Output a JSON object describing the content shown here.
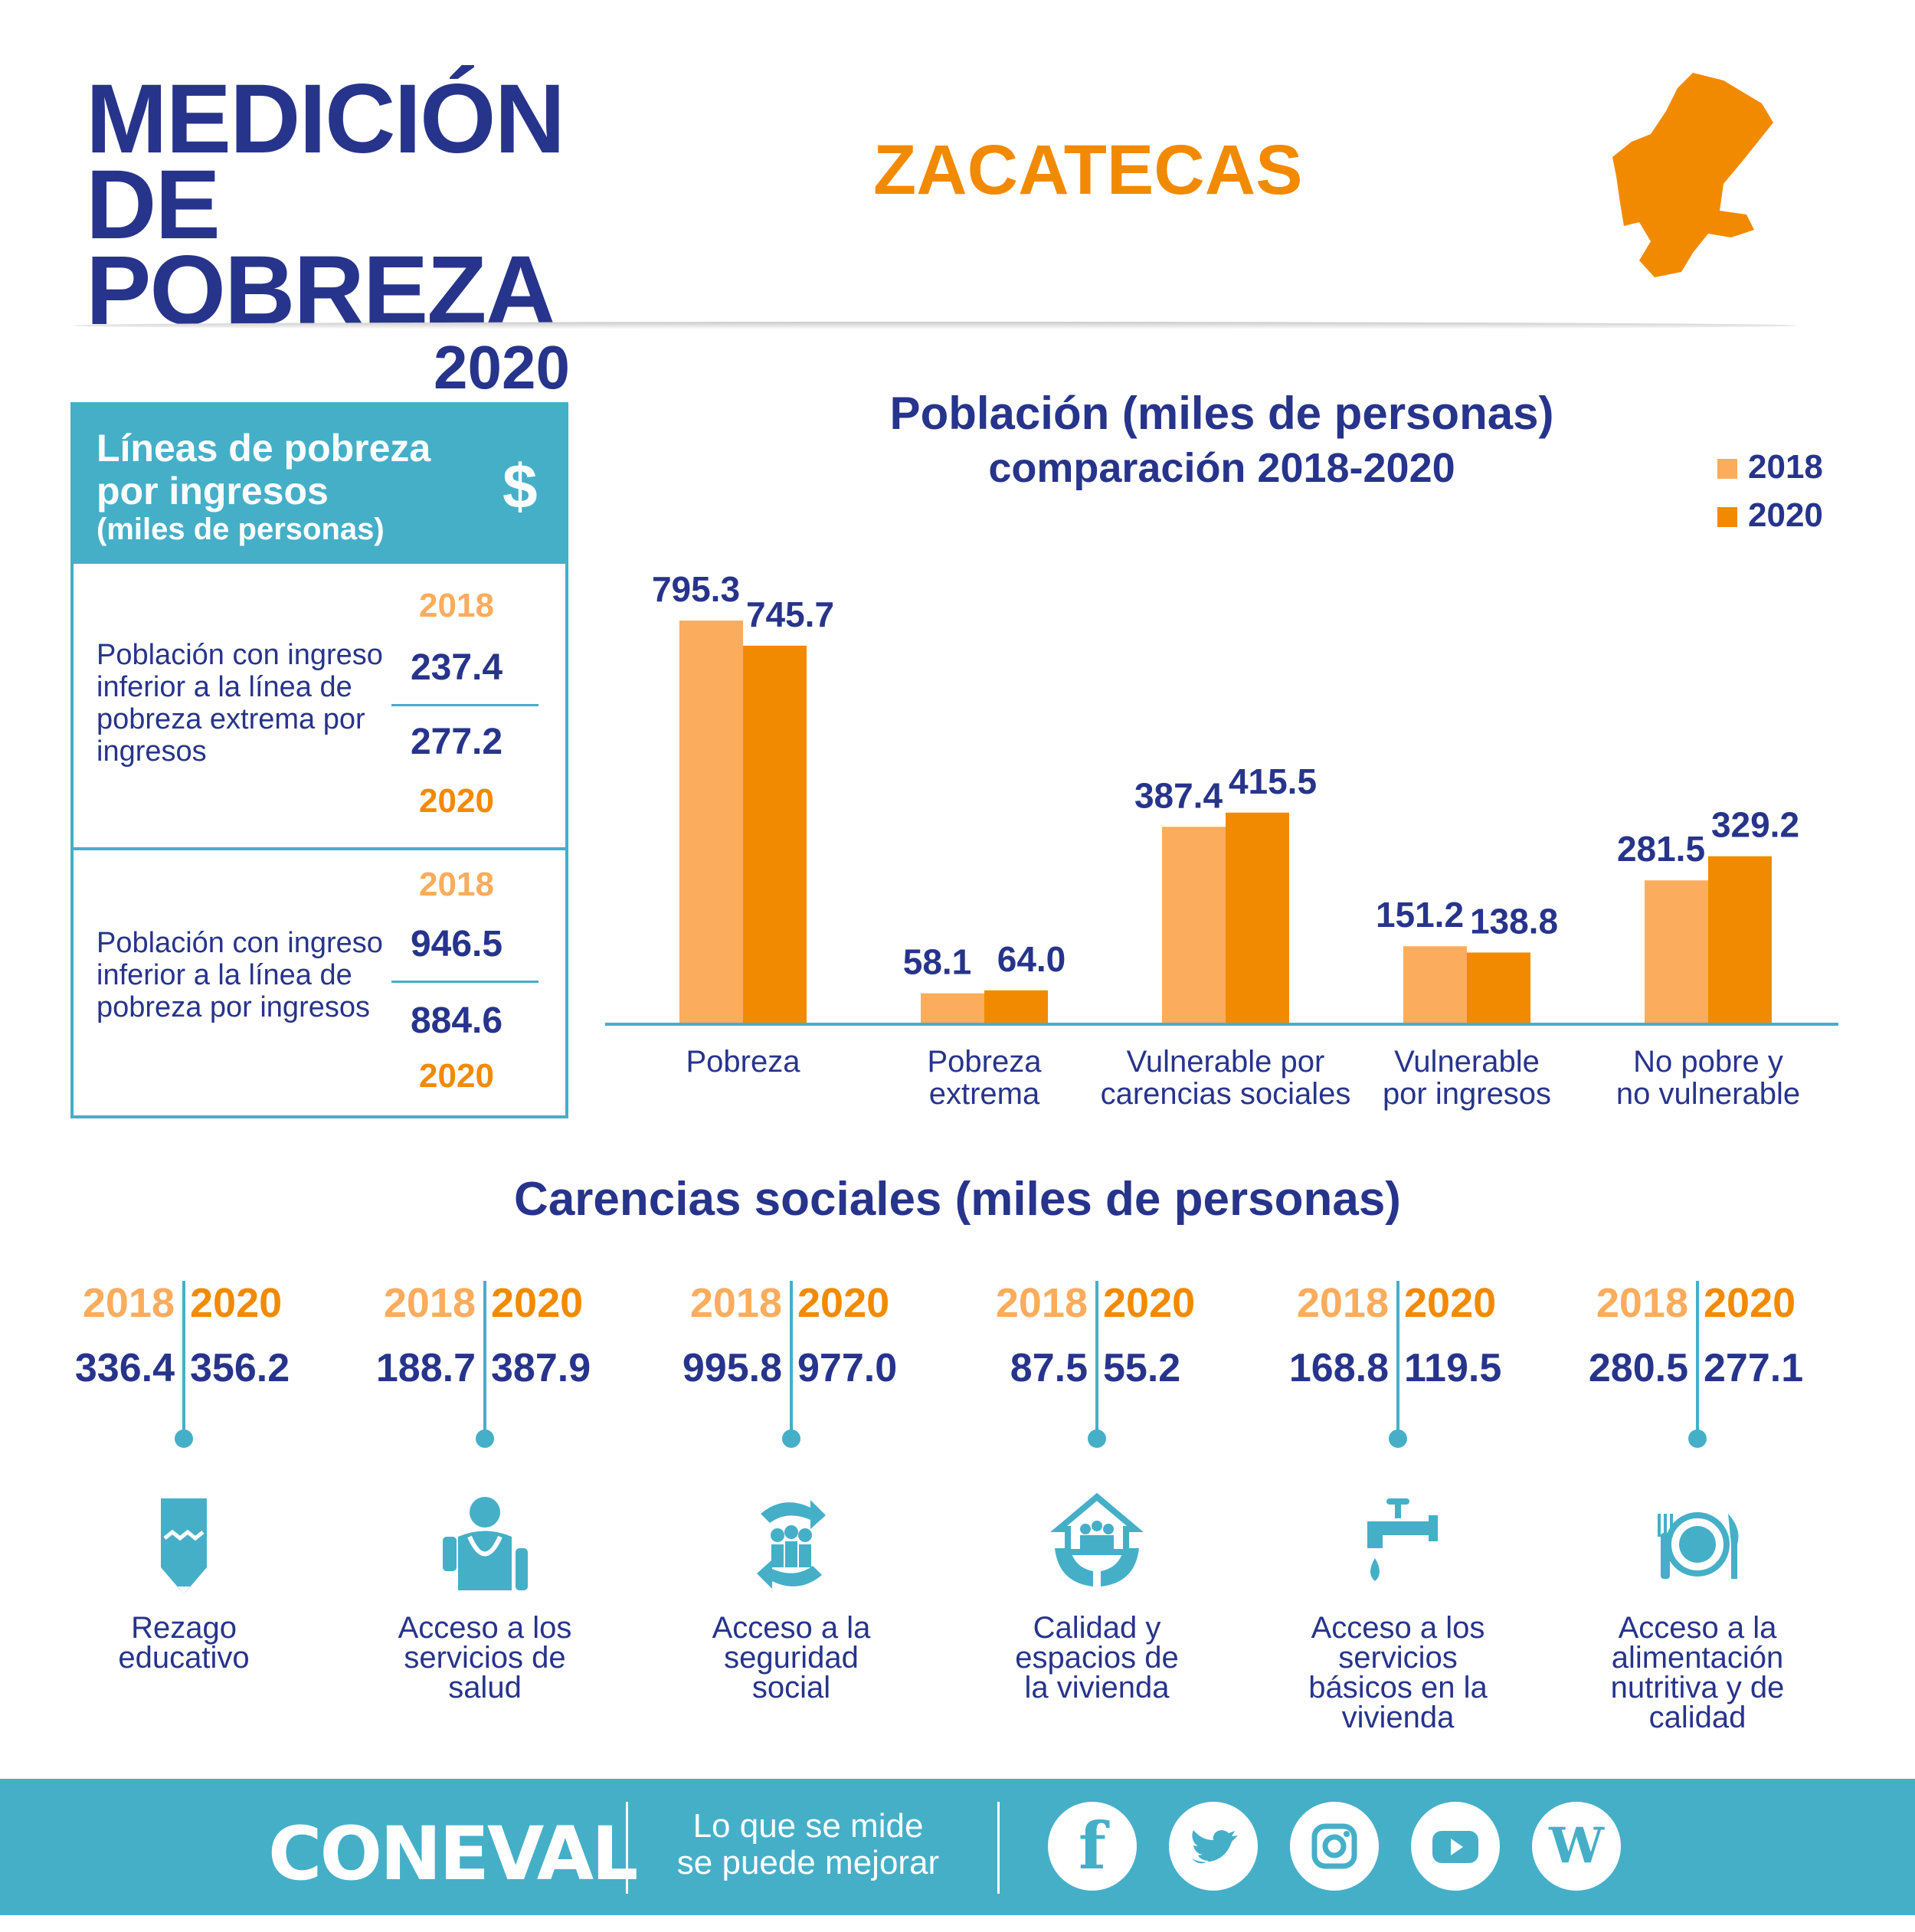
{
  "header": {
    "title_line1": "MEDICIÓN",
    "title_line2": "DE POBREZA",
    "title_year": "2020",
    "state": "ZACATECAS"
  },
  "income_box": {
    "title": "Líneas de pobreza por ingresos",
    "subtitle": "(miles de personas)",
    "icon": "dollar-icon",
    "rows": [
      {
        "label": "Población con ingreso inferior a la línea de pobreza extrema por ingresos",
        "year_2018": "2018",
        "value_2018": "237.4",
        "value_2020": "277.2",
        "year_2020": "2020"
      },
      {
        "label": "Población con ingreso inferior a la línea de pobreza por ingresos",
        "year_2018": "2018",
        "value_2018": "946.5",
        "value_2020": "884.6",
        "year_2020": "2020"
      }
    ]
  },
  "chart_data": {
    "type": "bar",
    "title": "Población (miles de personas)",
    "subtitle": "comparación 2018-2020",
    "categories": [
      "Pobreza",
      "Pobreza extrema",
      "Vulnerable por carencias sociales",
      "Vulnerable por ingresos",
      "No pobre y no vulnerable"
    ],
    "category_lines": [
      [
        "Pobreza"
      ],
      [
        "Pobreza",
        "extrema"
      ],
      [
        "Vulnerable por",
        "carencias sociales"
      ],
      [
        "Vulnerable",
        "por ingresos"
      ],
      [
        "No pobre y",
        "no vulnerable"
      ]
    ],
    "series": [
      {
        "name": "2018",
        "color": "#fbac5c",
        "values": [
          795.3,
          58.1,
          387.4,
          151.2,
          281.5
        ]
      },
      {
        "name": "2020",
        "color": "#f28a00",
        "values": [
          745.7,
          64.0,
          415.5,
          138.8,
          329.2
        ]
      }
    ],
    "value_labels": [
      [
        "795.3",
        "58.1",
        "387.4",
        "151.2",
        "281.5"
      ],
      [
        "745.7",
        "64.0",
        "415.5",
        "138.8",
        "329.2"
      ]
    ],
    "legend_position": "top-right",
    "grid": false
  },
  "carencias": {
    "title": "Carencias sociales (miles de personas)",
    "year_2018": "2018",
    "year_2020": "2020",
    "items": [
      {
        "label": "Rezago educativo",
        "lines": [
          "Rezago",
          "educativo"
        ],
        "v2018": "336.4",
        "v2020": "356.2",
        "icon": "pencil-icon"
      },
      {
        "label": "Acceso a los servicios de salud",
        "lines": [
          "Acceso a los",
          "servicios de",
          "salud"
        ],
        "v2018": "188.7",
        "v2020": "387.9",
        "icon": "doctor-icon"
      },
      {
        "label": "Acceso a la seguridad social",
        "lines": [
          "Acceso a la",
          "seguridad",
          "social"
        ],
        "v2018": "995.8",
        "v2020": "977.0",
        "icon": "social-security-icon"
      },
      {
        "label": "Calidad y espacios de la vivienda",
        "lines": [
          "Calidad y",
          "espacios de",
          "la vivienda"
        ],
        "v2018": "87.5",
        "v2020": "55.2",
        "icon": "house-hands-icon"
      },
      {
        "label": "Acceso a los servicios básicos en la vivienda",
        "lines": [
          "Acceso a los",
          "servicios",
          "básicos en la",
          "vivienda"
        ],
        "v2018": "168.8",
        "v2020": "119.5",
        "icon": "faucet-icon"
      },
      {
        "label": "Acceso a la alimentación nutritiva y de calidad",
        "lines": [
          "Acceso a la",
          "alimentación",
          "nutritiva y de",
          "calidad"
        ],
        "v2018": "280.5",
        "v2020": "277.1",
        "icon": "plate-icon"
      }
    ]
  },
  "footer": {
    "logo": "CONEVAL",
    "slogan_line1": "Lo que se mide",
    "slogan_line2": "se puede mejorar",
    "social": [
      "facebook-icon",
      "twitter-icon",
      "instagram-icon",
      "youtube-icon",
      "wordpress-icon"
    ]
  },
  "colors": {
    "navy": "#27348b",
    "orange": "#f28a00",
    "light_orange": "#fbac5c",
    "teal": "#45afc8"
  }
}
